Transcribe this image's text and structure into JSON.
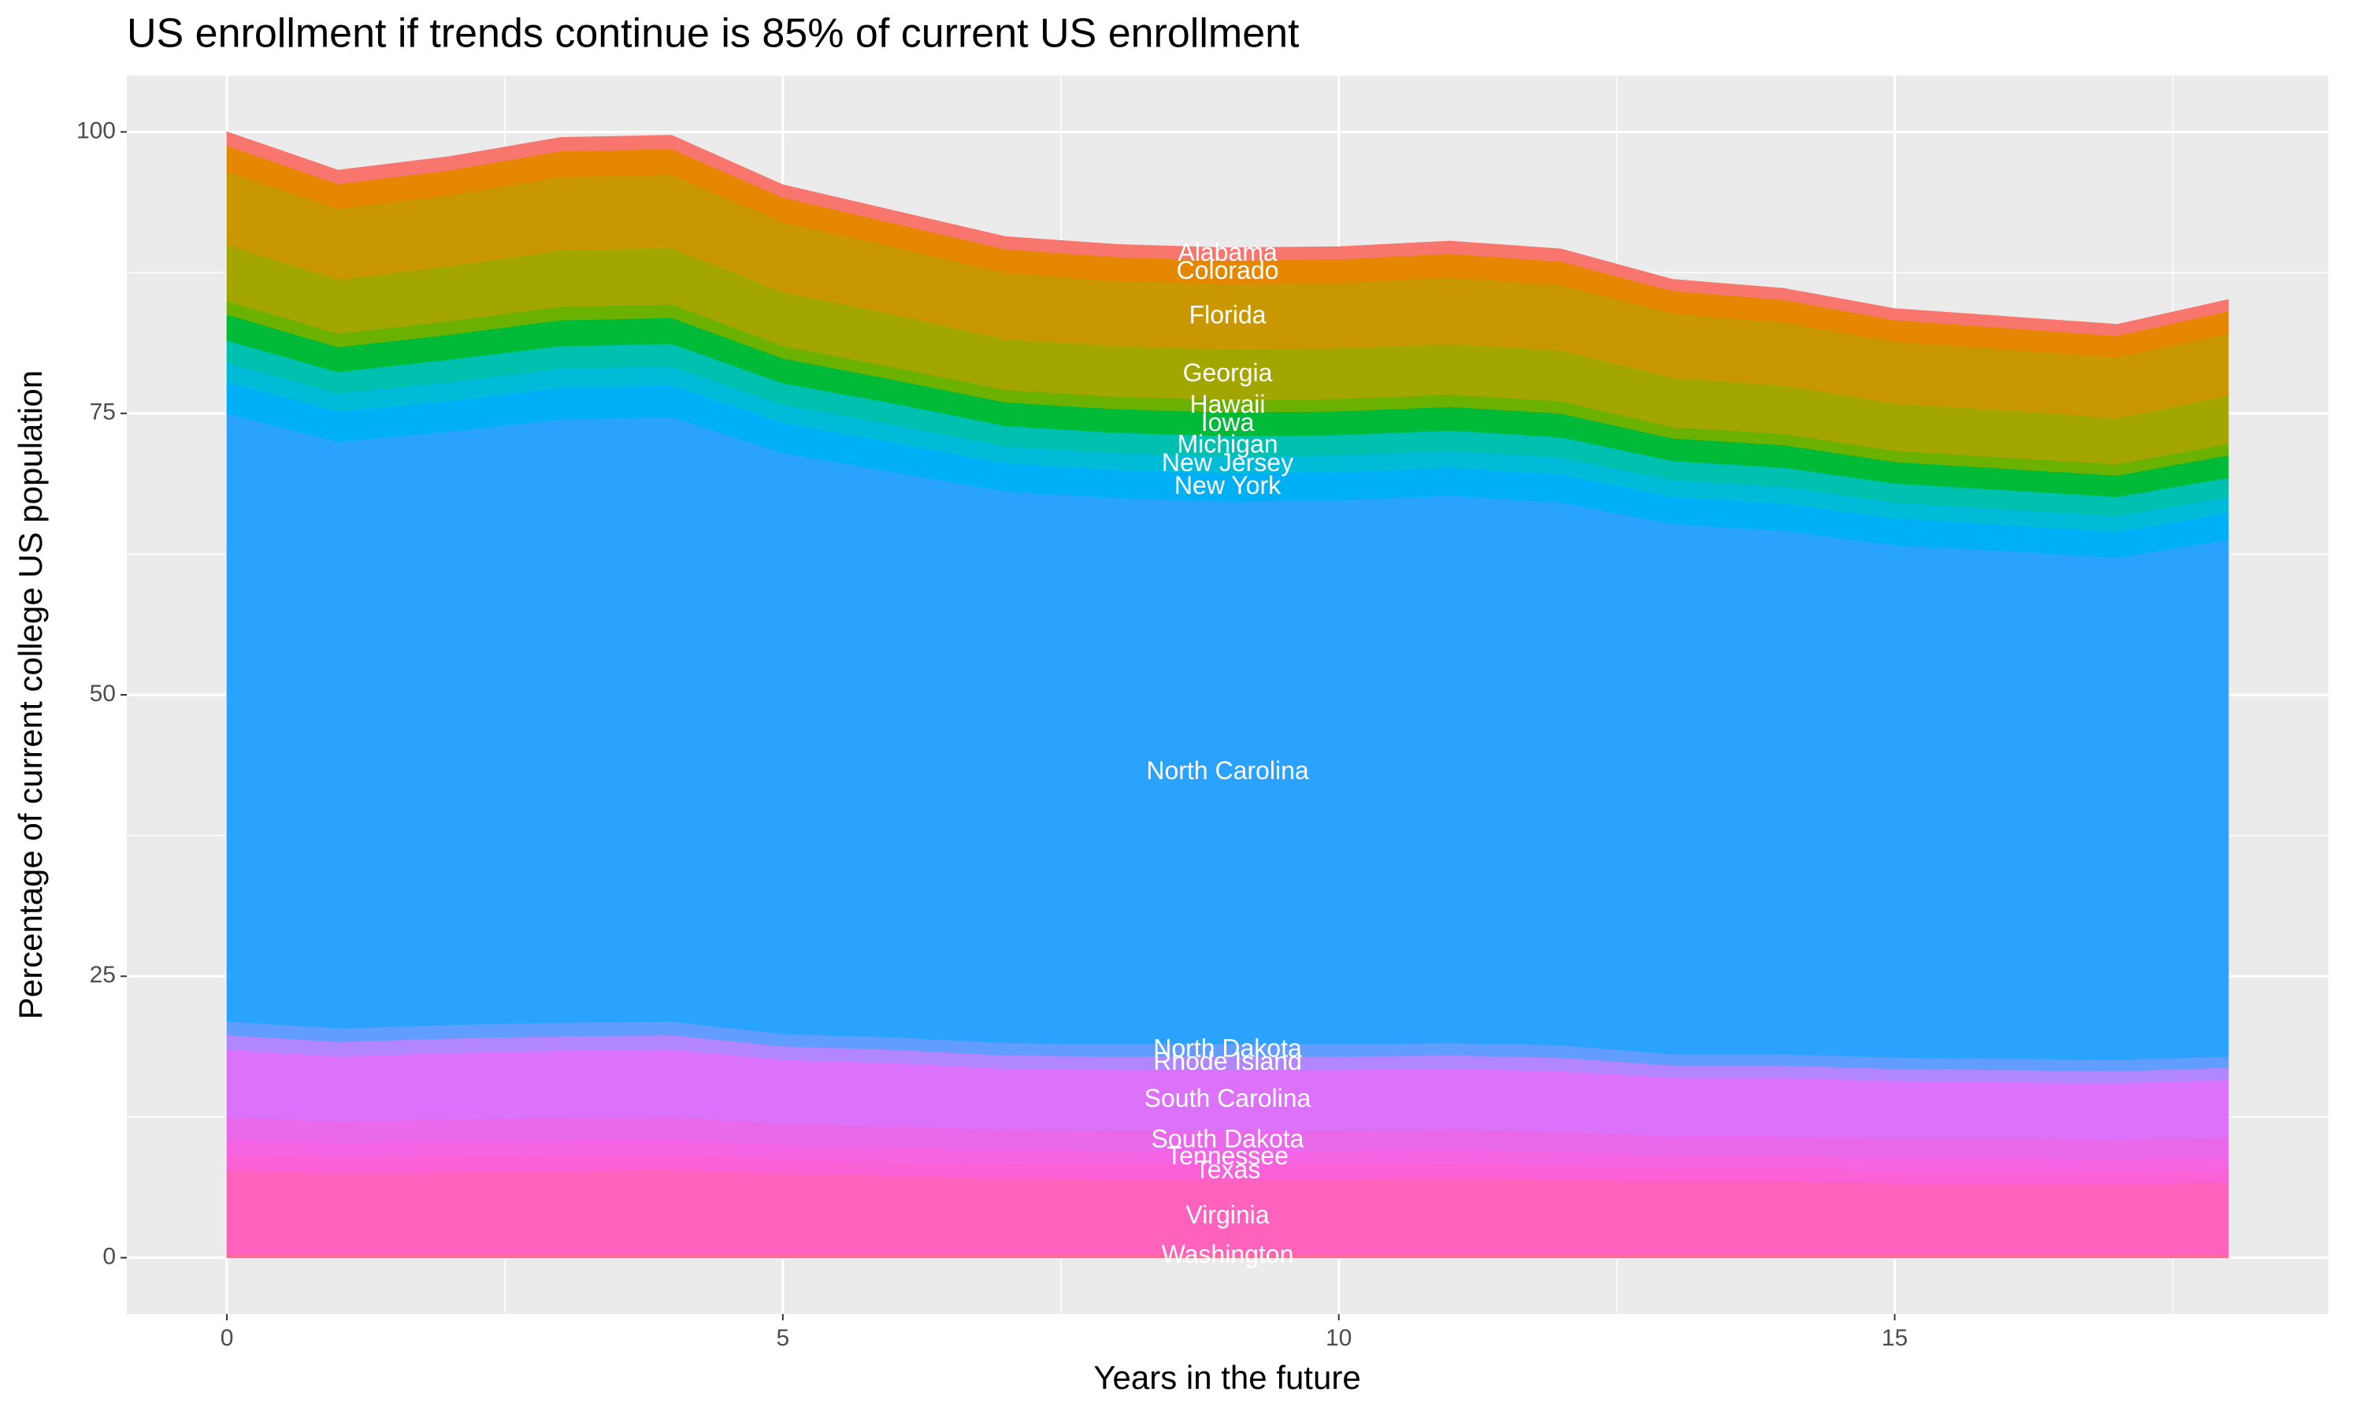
{
  "chart_data": {
    "type": "stacked_area",
    "title": "US enrollment if trends continue is 85% of current US enrollment",
    "xlabel": "Years in the future",
    "ylabel": "Percentage of current college US population",
    "x": [
      0,
      1,
      2,
      3,
      4,
      5,
      6,
      7,
      8,
      9,
      10,
      11,
      12,
      13,
      14,
      15,
      16,
      17,
      18
    ],
    "xlim": [
      -0.9,
      18.9
    ],
    "xticks": [
      0,
      5,
      10,
      15
    ],
    "ylim": [
      -5,
      105
    ],
    "yticks": [
      0,
      25,
      50,
      75,
      100
    ],
    "grid": true,
    "label_x": 9,
    "series": [
      {
        "name": "Alabama",
        "color": "#f8766d",
        "values": [
          1.2,
          1.2,
          1.2,
          1.2,
          1.2,
          1.1,
          1.1,
          1.1,
          1.1,
          1.1,
          1.1,
          1.1,
          1.1,
          1.0,
          1.0,
          1.0,
          1.0,
          1.0,
          1.0
        ]
      },
      {
        "name": "Colorado",
        "color": "#e58700",
        "values": [
          2.3,
          2.2,
          2.2,
          2.3,
          2.3,
          2.2,
          2.1,
          2.1,
          2.1,
          2.1,
          2.1,
          2.1,
          2.1,
          2.0,
          2.0,
          1.9,
          1.9,
          1.9,
          2.0
        ]
      },
      {
        "name": "Florida",
        "color": "#c99800",
        "values": [
          6.5,
          6.3,
          6.3,
          6.5,
          6.5,
          6.2,
          6.0,
          5.9,
          5.8,
          5.8,
          5.8,
          5.9,
          5.8,
          5.7,
          5.6,
          5.5,
          5.4,
          5.4,
          5.5
        ]
      },
      {
        "name": "Georgia",
        "color": "#a3a500",
        "values": [
          5.0,
          4.8,
          4.9,
          5.0,
          5.0,
          4.8,
          4.7,
          4.5,
          4.5,
          4.5,
          4.5,
          4.5,
          4.5,
          4.4,
          4.3,
          4.2,
          4.2,
          4.1,
          4.3
        ]
      },
      {
        "name": "Hawaii",
        "color": "#6bb100",
        "values": [
          1.2,
          1.2,
          1.2,
          1.2,
          1.2,
          1.1,
          1.1,
          1.1,
          1.1,
          1.1,
          1.1,
          1.1,
          1.1,
          1.0,
          1.0,
          1.0,
          1.0,
          1.0,
          1.0
        ]
      },
      {
        "name": "Iowa",
        "color": "#00ba38",
        "values": [
          2.3,
          2.2,
          2.2,
          2.3,
          2.3,
          2.2,
          2.1,
          2.1,
          2.1,
          2.1,
          2.1,
          2.1,
          2.1,
          2.0,
          2.0,
          1.9,
          1.9,
          1.9,
          2.0
        ]
      },
      {
        "name": "Michigan",
        "color": "#00c0af",
        "values": [
          2.0,
          1.9,
          2.0,
          2.0,
          2.0,
          1.9,
          1.9,
          1.8,
          1.8,
          1.8,
          1.8,
          1.8,
          1.8,
          1.7,
          1.7,
          1.7,
          1.7,
          1.7,
          1.7
        ]
      },
      {
        "name": "New Jersey",
        "color": "#00bcd8",
        "values": [
          1.7,
          1.6,
          1.7,
          1.7,
          1.7,
          1.6,
          1.6,
          1.5,
          1.5,
          1.5,
          1.5,
          1.5,
          1.5,
          1.5,
          1.5,
          1.4,
          1.4,
          1.4,
          1.4
        ]
      },
      {
        "name": "New York",
        "color": "#00b0f6",
        "values": [
          2.8,
          2.7,
          2.7,
          2.8,
          2.8,
          2.7,
          2.6,
          2.5,
          2.5,
          2.5,
          2.5,
          2.5,
          2.5,
          2.4,
          2.4,
          2.4,
          2.3,
          2.3,
          2.4
        ]
      },
      {
        "name": "North Carolina",
        "color": "#29a3ff",
        "values": [
          54.0,
          52.1,
          52.7,
          53.6,
          53.7,
          51.6,
          50.2,
          49.0,
          48.5,
          48.2,
          48.3,
          48.6,
          48.2,
          47.1,
          46.5,
          45.5,
          45.1,
          44.6,
          45.9
        ]
      },
      {
        "name": "North Dakota",
        "color": "#619cff",
        "values": [
          1.2,
          1.2,
          1.2,
          1.2,
          1.2,
          1.1,
          1.1,
          1.1,
          1.1,
          1.1,
          1.1,
          1.1,
          1.1,
          1.0,
          1.0,
          1.0,
          1.0,
          1.0,
          1.0
        ]
      },
      {
        "name": "Rhode Island",
        "color": "#b186ff",
        "values": [
          1.3,
          1.3,
          1.3,
          1.3,
          1.3,
          1.2,
          1.2,
          1.2,
          1.2,
          1.2,
          1.2,
          1.2,
          1.2,
          1.1,
          1.1,
          1.1,
          1.1,
          1.1,
          1.1
        ]
      },
      {
        "name": "South Carolina",
        "color": "#dc71fa",
        "values": [
          6.0,
          5.8,
          5.9,
          6.0,
          6.0,
          5.7,
          5.6,
          5.4,
          5.4,
          5.4,
          5.4,
          5.4,
          5.4,
          5.2,
          5.2,
          5.1,
          5.0,
          5.0,
          5.1
        ]
      },
      {
        "name": "South Dakota",
        "color": "#ea68ea",
        "values": [
          2.0,
          1.9,
          2.0,
          2.0,
          2.0,
          1.9,
          1.9,
          1.8,
          1.8,
          1.8,
          1.8,
          1.8,
          1.8,
          1.7,
          1.7,
          1.7,
          1.7,
          1.7,
          1.7
        ]
      },
      {
        "name": "Tennessee",
        "color": "#f564e3",
        "values": [
          1.3,
          1.3,
          1.3,
          1.3,
          1.3,
          1.2,
          1.2,
          1.2,
          1.2,
          1.2,
          1.2,
          1.2,
          1.2,
          1.1,
          1.1,
          1.1,
          1.1,
          1.1,
          1.1
        ]
      },
      {
        "name": "Texas",
        "color": "#fb61d7",
        "values": [
          1.4,
          1.4,
          1.4,
          1.4,
          1.4,
          1.3,
          1.3,
          1.3,
          1.3,
          1.3,
          1.3,
          1.3,
          1.2,
          1.2,
          1.2,
          1.2,
          1.2,
          1.2,
          1.2
        ]
      },
      {
        "name": "Virginia",
        "color": "#ff62bc",
        "values": [
          7.5,
          7.2,
          7.3,
          7.4,
          7.5,
          7.2,
          7.0,
          6.8,
          6.7,
          6.7,
          6.7,
          6.8,
          6.7,
          6.5,
          6.5,
          6.3,
          6.3,
          6.2,
          6.4
        ]
      },
      {
        "name": "Washington",
        "color": "#ff6c91",
        "values": [
          0.3,
          0.3,
          0.3,
          0.3,
          0.3,
          0.3,
          0.3,
          0.3,
          0.3,
          0.3,
          0.3,
          0.3,
          0.3,
          0.3,
          0.3,
          0.3,
          0.3,
          0.3,
          0.3
        ]
      }
    ]
  }
}
